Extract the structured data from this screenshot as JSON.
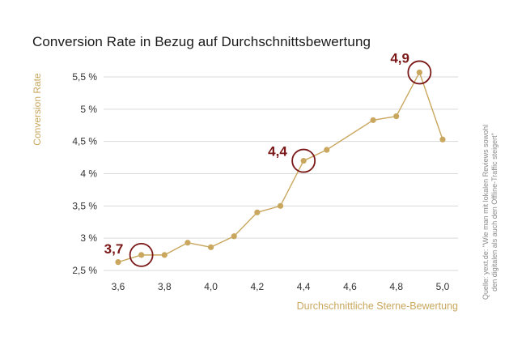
{
  "colors": {
    "accent": "#c9a75e",
    "highlight": "#7a1717",
    "grid": "#d9d9d9",
    "text": "#1a1a1a"
  },
  "chart_data": {
    "type": "line",
    "title": "Conversion Rate in Bezug auf Durchschnittsbewertung",
    "xlabel": "Durchschnittliche Sterne-Bewertung",
    "ylabel": "Conversion Rate",
    "xlim": [
      3.55,
      5.05
    ],
    "ylim": [
      2.5,
      5.75
    ],
    "grid": "horizontal",
    "x_ticks": [
      3.6,
      3.8,
      4.0,
      4.2,
      4.4,
      4.6,
      4.8,
      5.0
    ],
    "x_tick_labels": [
      "3,6",
      "3,8",
      "4,0",
      "4,2",
      "4,4",
      "4,6",
      "4,8",
      "5,0"
    ],
    "y_ticks": [
      2.5,
      3.0,
      3.5,
      4.0,
      4.5,
      5.0,
      5.5
    ],
    "y_tick_labels": [
      "2,5 %",
      "3 %",
      "3,5 %",
      "4 %",
      "4,5 %",
      "5 %",
      "5,5 %"
    ],
    "series": [
      {
        "x": [
          3.6,
          3.7,
          3.8,
          3.9,
          4.0,
          4.1,
          4.2,
          4.3,
          4.4,
          4.5,
          4.7,
          4.8,
          4.9,
          5.0
        ],
        "values": [
          2.63,
          2.74,
          2.74,
          2.93,
          2.86,
          3.03,
          3.4,
          3.5,
          4.2,
          4.37,
          4.83,
          4.89,
          5.57,
          4.53
        ]
      }
    ],
    "annotations": [
      {
        "x": 3.7,
        "y": 2.74,
        "label": "3,7"
      },
      {
        "x": 4.4,
        "y": 4.2,
        "label": "4,4"
      },
      {
        "x": 4.9,
        "y": 5.57,
        "label": "4,9"
      }
    ],
    "source_lines": [
      "Quelle: yext.de: \"Wie man mit lokalen Reviews sowohl",
      "den digitalen als auch den Offline-Traffic steigert\""
    ]
  }
}
